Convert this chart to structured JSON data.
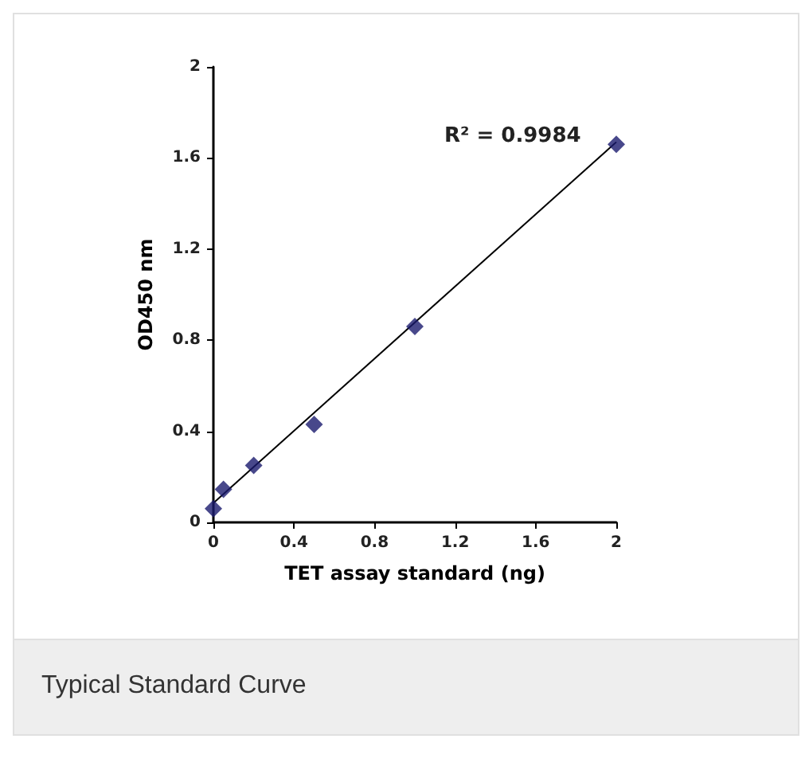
{
  "chart_data": {
    "type": "scatter",
    "xlabel": "TET assay standard (ng)",
    "ylabel": "OD450 nm",
    "annotations": [
      "R² = 0.9984",
      "Typical Standard Curve"
    ],
    "series": [
      {
        "color": "#1a1a6e",
        "x": [
          0,
          0.05,
          0.2,
          0.5,
          1,
          2
        ],
        "values": [
          0.06,
          0.145,
          0.25,
          0.43,
          0.86,
          1.66
        ],
        "marker": "diamond"
      },
      {
        "type": "line",
        "color": "#000000",
        "x": [
          0,
          2
        ],
        "values": [
          0.085,
          1.67
        ],
        "marker": "none",
        "line_style": "solid"
      }
    ],
    "xlim": [
      0,
      2
    ],
    "xticks": [
      0,
      0.4,
      0.8,
      1.2,
      1.6,
      2
    ],
    "ylim": [
      0,
      2
    ],
    "yticks": [
      0,
      0.4,
      0.8,
      1.2,
      1.6,
      2
    ],
    "grid": false
  }
}
